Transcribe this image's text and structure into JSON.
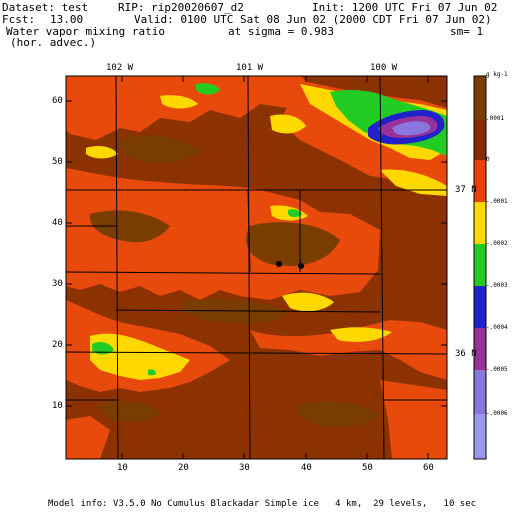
{
  "header": {
    "dataset_label": "Dataset: test",
    "rip_label": "RIP: rip20020607_d2",
    "init_label": "Init: 1200 UTC Fri 07 Jun 02",
    "fcst_label": "Fcst:",
    "fcst_value": "13.00",
    "valid_label": "Valid: 0100 UTC Sat 08 Jun 02 (2000 CDT Fri 07 Jun 02)",
    "field_name": "Water vapor mixing ratio",
    "field_sub": "(hor. advec.)",
    "sigma_label": "at sigma = 0.983",
    "sm_label": "sm= 1"
  },
  "map": {
    "top_longitudes": [
      "102 W",
      "101 W",
      "100 W"
    ],
    "right_latitudes": [
      "37 N",
      "36 N"
    ],
    "y_ticks": [
      "60",
      "50",
      "40",
      "30",
      "20",
      "10"
    ],
    "x_ticks": [
      "10",
      "20",
      "30",
      "40",
      "50",
      "60"
    ],
    "markers": [
      "station-1",
      "station-2"
    ]
  },
  "colorbar": {
    "unit": "g kg-1",
    "labels": [
      ".0001",
      "0",
      "-.0001",
      "-.0002",
      "-.0003",
      "-.0004",
      "-.0005",
      "-.0006"
    ],
    "colors": [
      "#7a3d00",
      "#8b2a00",
      "#e8400a",
      "#ffd800",
      "#22cc22",
      "#2222cc",
      "#993399",
      "#8877dd",
      "#9999ee"
    ]
  },
  "footer": {
    "model_info": "Model info: V3.5.0 No Cumulus Blackadar Simple ice   4 km,  29 levels,   10 sec"
  }
}
